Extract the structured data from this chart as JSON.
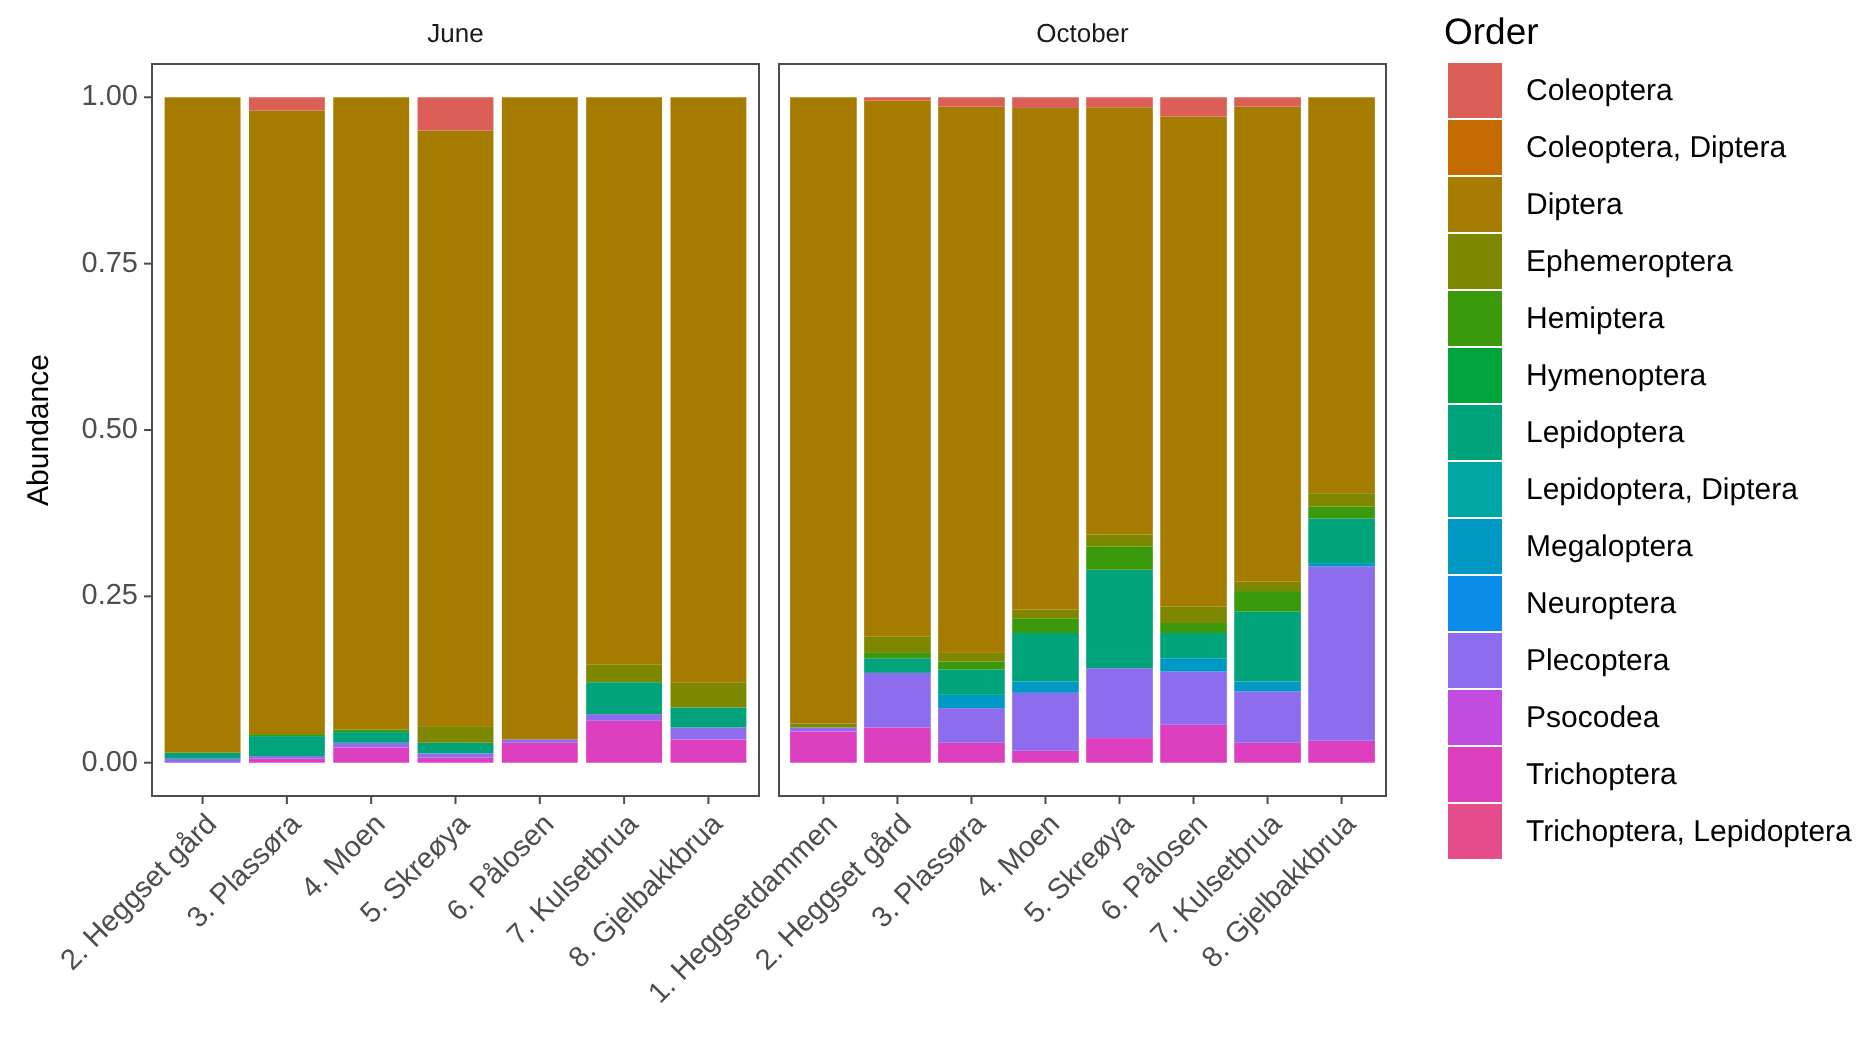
{
  "chart_data": [
    {
      "type": "bar",
      "stacked": true,
      "title": "June",
      "ylabel": "Abundance",
      "categories": [
        "2. Heggset gård",
        "3. Plassøra",
        "4. Moen",
        "5. Skreøya",
        "6. Pålosen",
        "7. Kulsetbrua",
        "8. Gjelbakkbrua"
      ],
      "ylim": [
        -0.05,
        1.05
      ],
      "yticks": [
        {
          "value": 0,
          "label": "0.00"
        },
        0.25,
        {
          "value": 0.5,
          "label": "0.50"
        },
        0.75,
        {
          "value": 1,
          "label": "1.00"
        }
      ],
      "series": [
        {
          "color": "#de3fbf",
          "values": [
            null,
            0.006,
            0.023,
            0.008,
            0.03,
            0.063,
            0.035
          ]
        },
        {
          "color": "#8d6cee",
          "values": [
            0.006,
            0.004,
            0.007,
            0.006,
            0.005,
            0.01,
            0.018
          ]
        },
        {
          "color": "#00a37a",
          "values": [
            0.009,
            0.03,
            0.016,
            0.016,
            null,
            0.048,
            0.03
          ]
        },
        {
          "color": "#3a9a0b",
          "values": [
            null,
            0.003,
            0.004,
            null,
            null,
            null,
            null
          ]
        },
        {
          "color": "#7e8700",
          "values": [
            null,
            null,
            null,
            0.025,
            null,
            0.027,
            0.038
          ]
        },
        {
          "color": "#a67c00",
          "values": [
            0.985,
            0.937,
            0.95,
            0.895,
            0.965,
            0.852,
            0.879
          ]
        },
        {
          "color": "#db5f57",
          "values": [
            null,
            0.02,
            null,
            0.05,
            null,
            null,
            null
          ]
        }
      ]
    },
    {
      "type": "bar",
      "stacked": true,
      "title": "October",
      "legend": "right",
      "legend_title": "Order",
      "tick_labels": "x",
      "categories": [
        "1. Heggsetdammen",
        "2. Heggset gård",
        "3. Plassøra",
        "4. Moen",
        "5. Skreøya",
        "6. Pålosen",
        "7. Kulsetbrua",
        "8. Gjelbakkbrua"
      ],
      "ylim": [
        -0.05,
        1.05
      ],
      "series": [
        {
          "name": "Trichoptera, Lepidoptera",
          "color": "#e64d8c",
          "values": [
            null,
            null,
            null,
            null,
            null,
            null,
            null,
            null
          ]
        },
        {
          "name": "Trichoptera",
          "color": "#de3fbf",
          "values": [
            0.047,
            0.053,
            0.03,
            0.018,
            0.037,
            0.057,
            0.03,
            0.033
          ]
        },
        {
          "name": "Psocodea",
          "color": "#c14cdf",
          "values": [
            null,
            null,
            null,
            null,
            null,
            null,
            null,
            null
          ]
        },
        {
          "name": "Plecoptera",
          "color": "#8d6cee",
          "values": [
            0.006,
            0.082,
            0.052,
            0.087,
            0.105,
            0.08,
            0.077,
            0.262
          ]
        },
        {
          "name": "Neuroptera",
          "color": "#0a8bea",
          "values": [
            null,
            null,
            null,
            null,
            null,
            null,
            null,
            null
          ]
        },
        {
          "name": "Megaloptera",
          "color": "#0099c6",
          "values": [
            null,
            null,
            0.02,
            0.017,
            null,
            0.02,
            0.015,
            0.005
          ]
        },
        {
          "name": "Lepidoptera, Diptera",
          "color": "#00a6a4",
          "values": [
            null,
            null,
            null,
            null,
            null,
            null,
            null,
            null
          ]
        },
        {
          "name": "Lepidoptera",
          "color": "#00a37a",
          "values": [
            null,
            0.022,
            0.038,
            0.073,
            0.148,
            0.038,
            0.105,
            0.067
          ]
        },
        {
          "name": "Hymenoptera",
          "color": "#00a43a",
          "values": [
            null,
            null,
            null,
            null,
            null,
            null,
            null,
            null
          ]
        },
        {
          "name": "Hemiptera",
          "color": "#3a9a0b",
          "values": [
            null,
            0.008,
            0.012,
            0.022,
            0.035,
            0.015,
            0.031,
            0.018
          ]
        },
        {
          "name": "Ephemeroptera",
          "color": "#7e8700",
          "values": [
            0.006,
            0.025,
            0.013,
            0.013,
            0.018,
            0.025,
            0.014,
            0.02
          ]
        },
        {
          "name": "Diptera",
          "color": "#a67c00",
          "values": [
            0.941,
            0.805,
            0.821,
            0.754,
            0.642,
            0.736,
            0.714,
            0.595
          ]
        },
        {
          "name": "Coleoptera, Diptera",
          "color": "#c46b00",
          "values": [
            null,
            null,
            null,
            null,
            null,
            null,
            null,
            null
          ]
        },
        {
          "name": "Coleoptera",
          "color": "#db5f57",
          "values": [
            null,
            0.005,
            0.014,
            0.016,
            0.015,
            0.029,
            0.014,
            null
          ]
        }
      ]
    }
  ]
}
